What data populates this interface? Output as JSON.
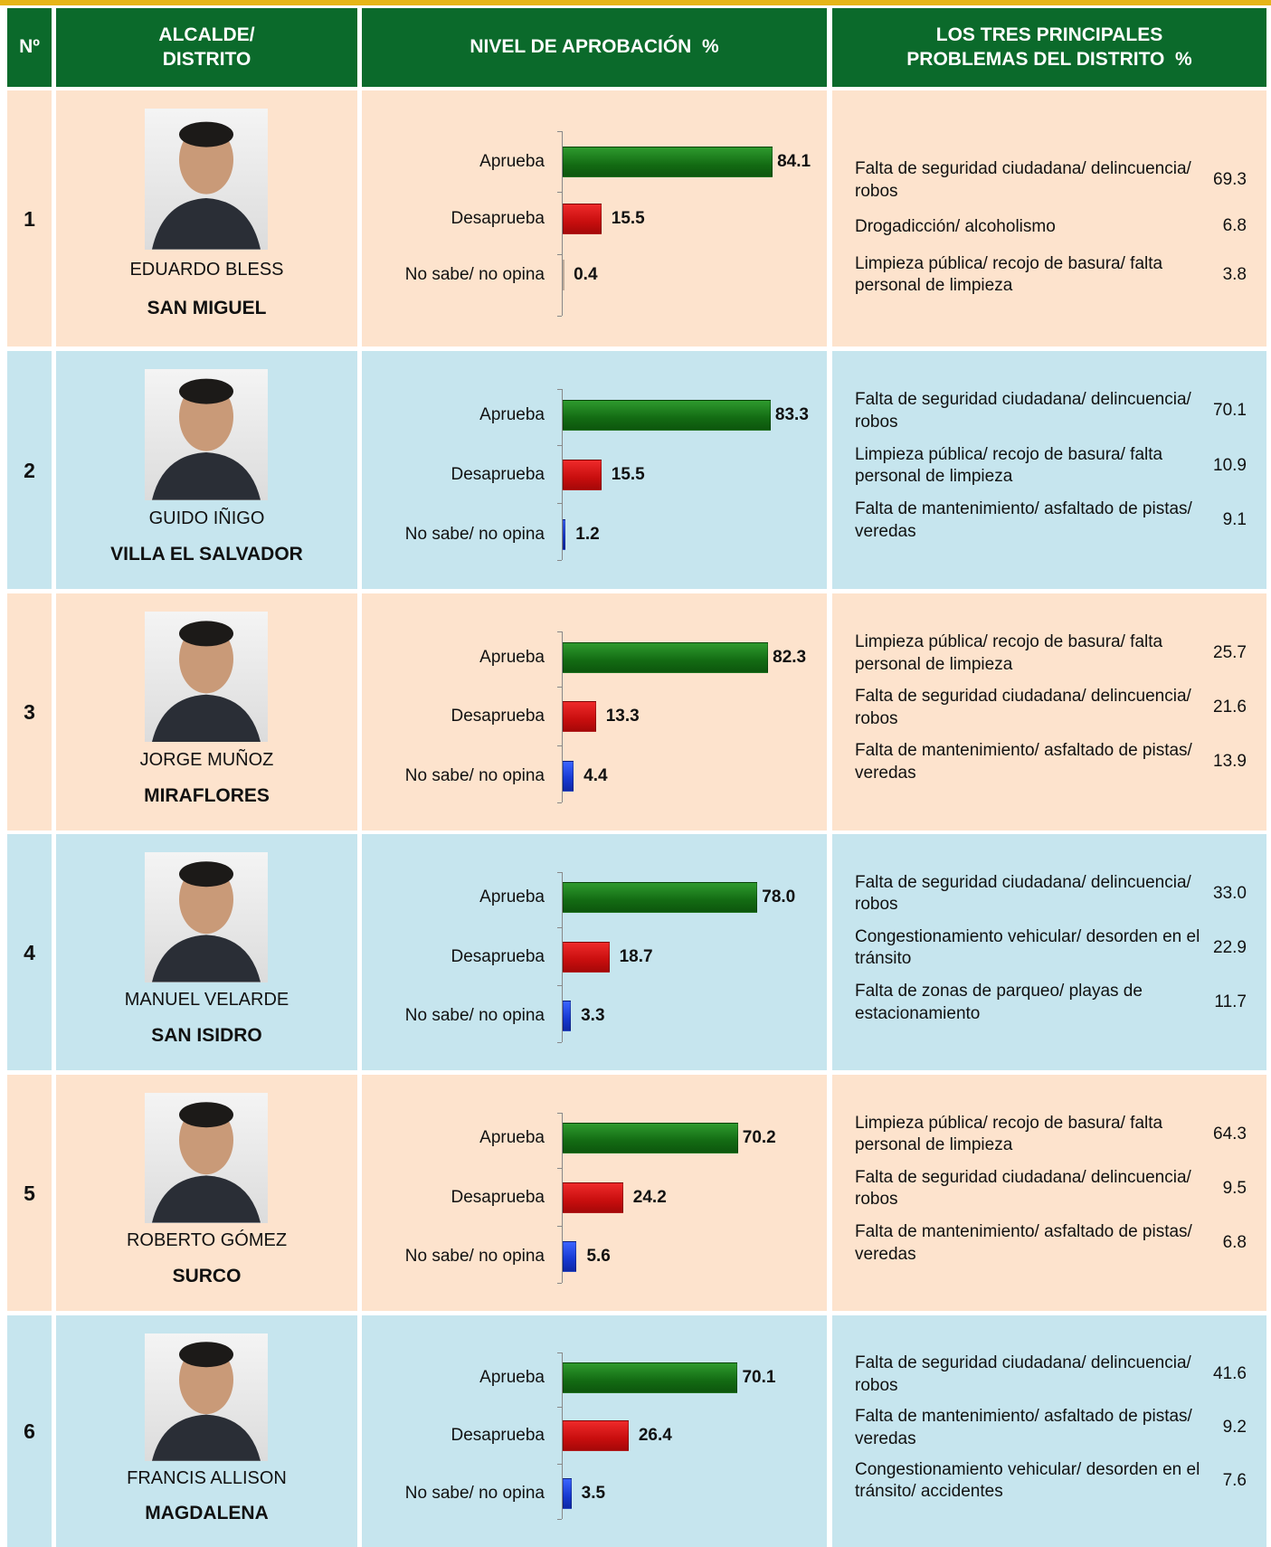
{
  "header": {
    "number": "Nº",
    "mayor": "ALCALDE/ DISTRITO",
    "approval": "NIVEL DE APROBACIÓN  %",
    "problems": "LOS TRES PRINCIPALES PROBLEMAS DEL DISTRITO  %"
  },
  "approval_categories": [
    "Aprueba",
    "Desaprueba",
    "No sabe/ no opina"
  ],
  "rows": [
    {
      "number": "1",
      "name": "EDUARDO BLESS",
      "district": "SAN MIGUEL",
      "approval": {
        "values": [
          84.1,
          15.5,
          0.4
        ],
        "value_labels": [
          "84.1",
          "15.5",
          "0.4"
        ]
      },
      "problems": [
        {
          "text": "Falta de seguridad ciudadana/ delincuencia/ robos",
          "value": "69.3"
        },
        {
          "text": "Drogadicción/ alcoholismo",
          "value": "6.8"
        },
        {
          "text": "Limpieza pública/ recojo de basura/ falta personal de limpieza",
          "value": "3.8"
        }
      ]
    },
    {
      "number": "2",
      "name": "GUIDO IÑIGO",
      "district": "VILLA EL SALVADOR",
      "approval": {
        "values": [
          83.3,
          15.5,
          1.2
        ],
        "value_labels": [
          "83.3",
          "15.5",
          "1.2"
        ]
      },
      "problems": [
        {
          "text": "Falta de seguridad ciudadana/ delincuencia/ robos",
          "value": "70.1"
        },
        {
          "text": "Limpieza pública/ recojo de basura/ falta personal de limpieza",
          "value": "10.9"
        },
        {
          "text": "Falta de mantenimiento/ asfaltado de pistas/ veredas",
          "value": "9.1"
        }
      ]
    },
    {
      "number": "3",
      "name": "JORGE MUÑOZ",
      "district": "MIRAFLORES",
      "approval": {
        "values": [
          82.3,
          13.3,
          4.4
        ],
        "value_labels": [
          "82.3",
          "13.3",
          "4.4"
        ]
      },
      "problems": [
        {
          "text": "Limpieza pública/ recojo de basura/ falta personal de limpieza",
          "value": "25.7"
        },
        {
          "text": "Falta de seguridad ciudadana/ delincuencia/ robos",
          "value": "21.6"
        },
        {
          "text": "Falta de mantenimiento/ asfaltado de pistas/ veredas",
          "value": "13.9"
        }
      ]
    },
    {
      "number": "4",
      "name": "MANUEL VELARDE",
      "district": "SAN ISIDRO",
      "approval": {
        "values": [
          78.0,
          18.7,
          3.3
        ],
        "value_labels": [
          "78.0",
          "18.7",
          "3.3"
        ]
      },
      "problems": [
        {
          "text": "Falta de seguridad ciudadana/ delincuencia/ robos",
          "value": "33.0"
        },
        {
          "text": "Congestionamiento vehicular/ desorden en el tránsito",
          "value": "22.9"
        },
        {
          "text": "Falta de zonas de parqueo/ playas de estacionamiento",
          "value": "11.7"
        }
      ]
    },
    {
      "number": "5",
      "name": "ROBERTO GÓMEZ",
      "district": "SURCO",
      "approval": {
        "values": [
          70.2,
          24.2,
          5.6
        ],
        "value_labels": [
          "70.2",
          "24.2",
          "5.6"
        ]
      },
      "problems": [
        {
          "text": "Limpieza pública/ recojo de basura/ falta personal de limpieza",
          "value": "64.3"
        },
        {
          "text": "Falta de seguridad ciudadana/ delincuencia/ robos",
          "value": "9.5"
        },
        {
          "text": "Falta de mantenimiento/ asfaltado de pistas/ veredas",
          "value": "6.8"
        }
      ]
    },
    {
      "number": "6",
      "name": "FRANCIS ALLISON",
      "district": "MAGDALENA",
      "approval": {
        "values": [
          70.1,
          26.4,
          3.5
        ],
        "value_labels": [
          "70.1",
          "26.4",
          "3.5"
        ]
      },
      "problems": [
        {
          "text": "Falta de seguridad ciudadana/ delincuencia/ robos",
          "value": "41.6"
        },
        {
          "text": "Falta de mantenimiento/ asfaltado de pistas/ veredas",
          "value": "9.2"
        },
        {
          "text": "Congestionamiento vehicular/ desorden en el tránsito/ accidentes",
          "value": "7.6"
        }
      ]
    }
  ]
}
